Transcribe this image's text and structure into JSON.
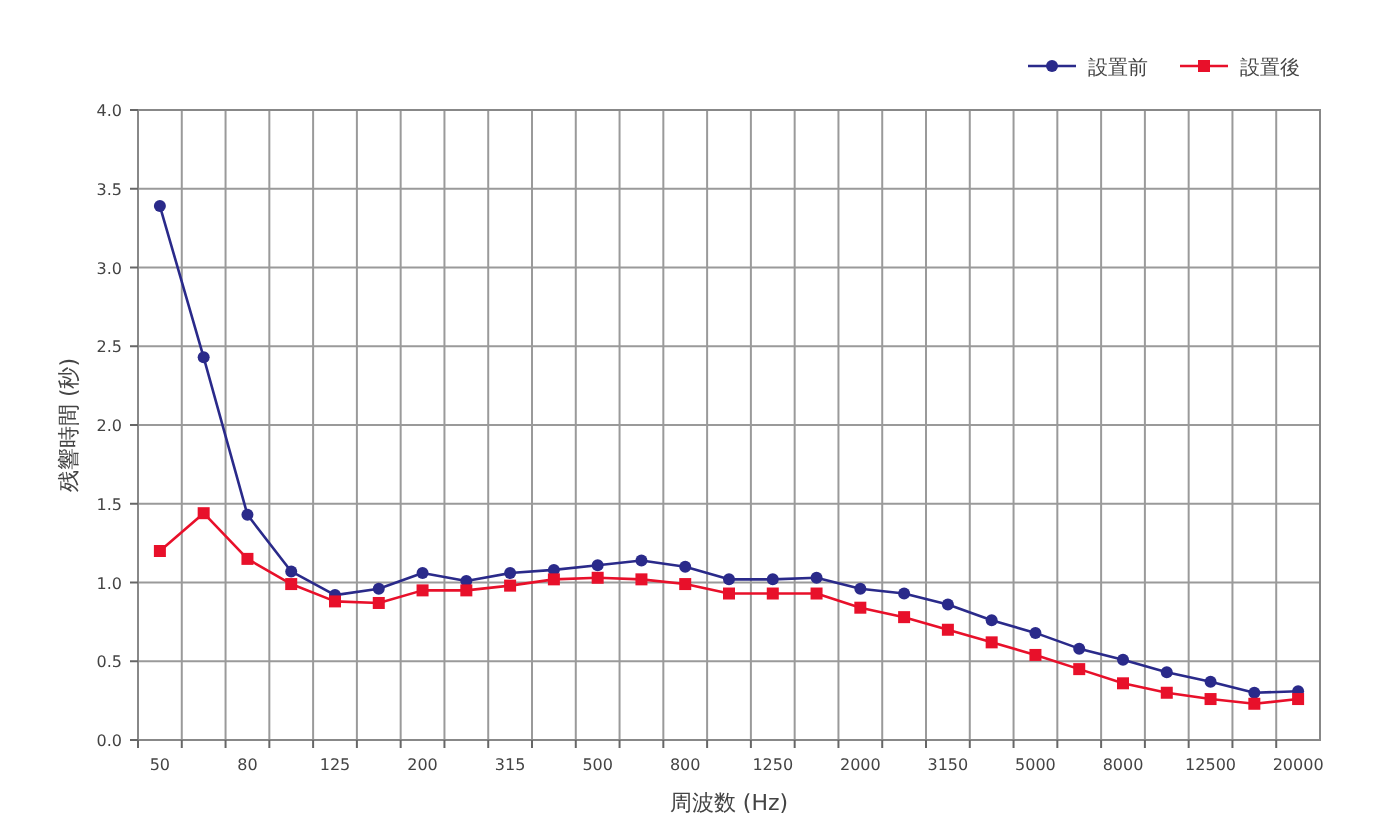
{
  "chart_data": {
    "type": "line",
    "xlabel": "周波数 (Hz)",
    "ylabel": "残響時間 (秒)",
    "categories": [
      "50",
      null,
      "80",
      null,
      "125",
      null,
      "200",
      null,
      "315",
      null,
      "500",
      null,
      "800",
      null,
      "1250",
      null,
      "2000",
      null,
      "3150",
      null,
      "5000",
      null,
      "8000",
      null,
      "12500",
      null,
      "20000"
    ],
    "series": [
      {
        "name": "設置前",
        "color": "#2a2a8a",
        "marker": "circle",
        "values": [
          3.39,
          2.43,
          1.43,
          1.07,
          0.92,
          0.96,
          1.06,
          1.01,
          1.06,
          1.08,
          1.11,
          1.14,
          1.1,
          1.02,
          1.02,
          1.03,
          0.96,
          0.93,
          0.86,
          0.76,
          0.68,
          0.58,
          0.51,
          0.43,
          0.37,
          0.3,
          0.31
        ]
      },
      {
        "name": "設置後",
        "color": "#e8102a",
        "marker": "square",
        "values": [
          1.2,
          1.44,
          1.15,
          0.99,
          0.88,
          0.87,
          0.95,
          0.95,
          0.98,
          1.02,
          1.03,
          1.02,
          0.99,
          0.93,
          0.93,
          0.93,
          0.84,
          0.78,
          0.7,
          0.62,
          0.54,
          0.45,
          0.36,
          0.3,
          0.26,
          0.23,
          0.26
        ]
      }
    ],
    "ylim": [
      0,
      4
    ],
    "yticks": [
      {
        "value": 0,
        "label": "0.0"
      },
      {
        "value": 0.5,
        "label": "0.5"
      },
      {
        "value": 1,
        "label": "1.0"
      },
      {
        "value": 1.5,
        "label": "1.5"
      },
      {
        "value": 2,
        "label": "2.0"
      },
      {
        "value": 2.5,
        "label": "2.5"
      },
      {
        "value": 3,
        "label": "3.0"
      },
      {
        "value": 3.5,
        "label": "3.5"
      },
      {
        "value": 4,
        "label": "4.0"
      }
    ],
    "grid": true,
    "legend": "top right",
    "line_style": "solid"
  }
}
